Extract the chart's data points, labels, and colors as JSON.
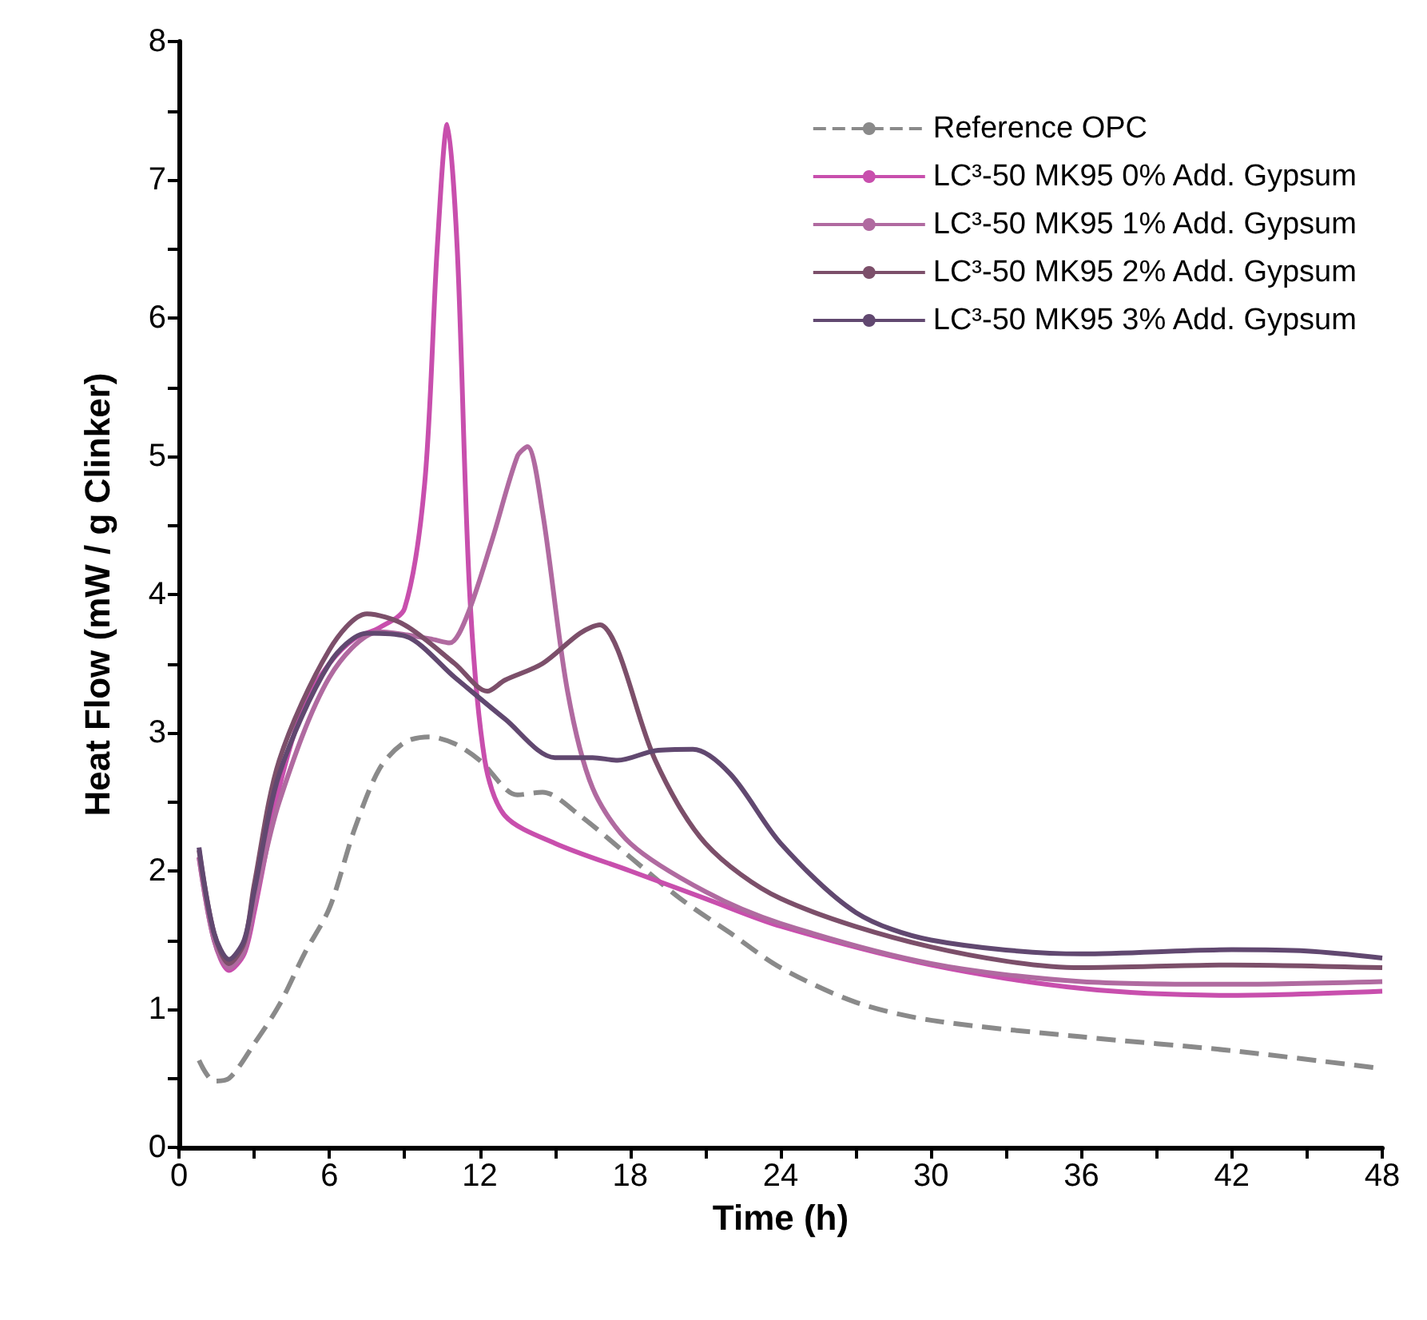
{
  "chart_data": {
    "type": "line",
    "xlabel": "Time (h)",
    "ylabel": "Heat Flow (mW / g Clinker)",
    "xlim": [
      0,
      48
    ],
    "ylim": [
      0,
      8
    ],
    "xticks": [
      0,
      {
        "value": 3,
        "label": null
      },
      6,
      {
        "value": 9,
        "label": null
      },
      12,
      {
        "value": 15,
        "label": null
      },
      18,
      {
        "value": 21,
        "label": null
      },
      24,
      {
        "value": 27,
        "label": null
      },
      30,
      {
        "value": 33,
        "label": null
      },
      36,
      {
        "value": 39,
        "label": null
      },
      42,
      {
        "value": 45,
        "label": null
      },
      48
    ],
    "yticks": [
      0,
      {
        "value": 0.5,
        "label": null
      },
      1,
      {
        "value": 1.5,
        "label": null
      },
      2,
      {
        "value": 2.5,
        "label": null
      },
      3,
      {
        "value": 3.5,
        "label": null
      },
      4,
      {
        "value": 4.5,
        "label": null
      },
      5,
      {
        "value": 5.5,
        "label": null
      },
      6,
      {
        "value": 6.5,
        "label": null
      },
      7,
      {
        "value": 7.5,
        "label": null
      },
      8
    ],
    "grid": false,
    "legend": "top right",
    "marker": "none",
    "series": [
      {
        "name": "Reference OPC",
        "color": "#8a8a8a",
        "line_style": "dashed",
        "x": [
          0.8,
          1.4,
          2,
          3,
          4,
          5,
          6,
          7,
          8,
          9,
          10,
          11,
          12,
          13.5,
          14.5,
          16,
          18,
          20,
          22,
          24,
          27,
          30,
          36,
          42,
          48
        ],
        "values": [
          0.63,
          0.48,
          0.5,
          0.75,
          1.03,
          1.4,
          1.73,
          2.3,
          2.74,
          2.93,
          2.97,
          2.92,
          2.8,
          2.55,
          2.57,
          2.4,
          2.1,
          1.8,
          1.55,
          1.3,
          1.05,
          0.92,
          0.8,
          0.7,
          0.57
        ]
      },
      {
        "name": "LC³-50 MK95 0% Add. Gypsum",
        "color": "#c84fad",
        "line_style": "solid",
        "x": [
          0.8,
          1.4,
          2,
          2.6,
          3,
          4,
          5,
          6,
          7,
          8,
          9,
          9.8,
          10.3,
          10.7,
          11.1,
          11.6,
          12.2,
          13,
          15,
          18,
          21,
          24,
          30,
          36,
          42,
          48
        ],
        "values": [
          2.1,
          1.5,
          1.28,
          1.4,
          1.7,
          2.6,
          3.2,
          3.5,
          3.68,
          3.76,
          3.9,
          4.8,
          6.5,
          7.4,
          6.5,
          4.0,
          2.8,
          2.4,
          2.2,
          2.0,
          1.8,
          1.6,
          1.32,
          1.15,
          1.1,
          1.13
        ]
      },
      {
        "name": "LC³-50 MK95 1% Add. Gypsum",
        "color": "#b06aa0",
        "line_style": "solid",
        "x": [
          0.8,
          1.4,
          2,
          2.6,
          3,
          4,
          6,
          8,
          10,
          10.8,
          11.5,
          12.5,
          13.5,
          13.9,
          14.5,
          15.5,
          16.5,
          18,
          21,
          24,
          30,
          36,
          42,
          48
        ],
        "values": [
          2.1,
          1.5,
          1.3,
          1.42,
          1.75,
          2.5,
          3.4,
          3.73,
          3.68,
          3.65,
          3.85,
          4.4,
          5.0,
          5.07,
          4.6,
          3.3,
          2.6,
          2.2,
          1.85,
          1.62,
          1.33,
          1.2,
          1.18,
          1.2
        ]
      },
      {
        "name": "LC³-50 MK95 2% Add. Gypsum",
        "color": "#7c4f6a",
        "line_style": "solid",
        "x": [
          0.8,
          1.4,
          2,
          2.6,
          3,
          4,
          6,
          7.5,
          9,
          11,
          12.3,
          13,
          14.5,
          16,
          16.8,
          17.5,
          19,
          21,
          24,
          30,
          36,
          42,
          48
        ],
        "values": [
          2.15,
          1.55,
          1.33,
          1.48,
          1.9,
          2.8,
          3.6,
          3.86,
          3.78,
          3.5,
          3.3,
          3.38,
          3.5,
          3.72,
          3.78,
          3.6,
          2.8,
          2.2,
          1.8,
          1.45,
          1.3,
          1.32,
          1.3
        ]
      },
      {
        "name": "LC³-50 MK95 3% Add. Gypsum",
        "color": "#614870",
        "line_style": "solid",
        "x": [
          0.8,
          1.4,
          2,
          2.6,
          3,
          4,
          6,
          7.5,
          9,
          11,
          13,
          15,
          16.5,
          17.5,
          19,
          20.5,
          22,
          24,
          27,
          30,
          36,
          42,
          45,
          48
        ],
        "values": [
          2.17,
          1.55,
          1.36,
          1.5,
          1.85,
          2.7,
          3.5,
          3.72,
          3.7,
          3.4,
          3.1,
          2.82,
          2.82,
          2.8,
          2.87,
          2.88,
          2.7,
          2.2,
          1.7,
          1.5,
          1.4,
          1.43,
          1.42,
          1.37
        ]
      }
    ]
  }
}
